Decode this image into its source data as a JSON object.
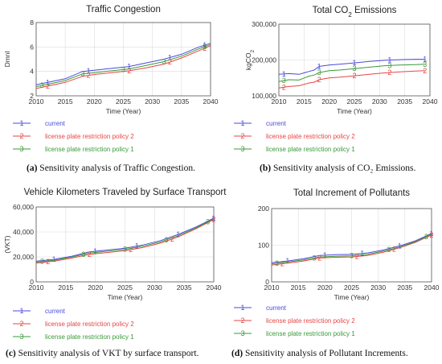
{
  "chart_data": [
    {
      "type": "line",
      "title": "Traffic Congestion",
      "xlabel": "Time (Year)",
      "ylabel": "Dmnl",
      "xlim": [
        2010,
        2040
      ],
      "ylim": [
        2,
        8
      ],
      "xticks": [
        "2010",
        "2015",
        "2020",
        "2025",
        "2030",
        "2035",
        "2040"
      ],
      "yticks": [
        "2",
        "4",
        "6",
        "8"
      ],
      "grid": true,
      "legend_position": "bottom",
      "series": [
        {
          "name": "current",
          "marker": "1",
          "color": "#4a4adc",
          "x": [
            2010,
            2012,
            2015,
            2018,
            2020,
            2023,
            2026,
            2029,
            2032,
            2035,
            2038,
            2040
          ],
          "y": [
            2.9,
            3.1,
            3.4,
            4.0,
            4.1,
            4.25,
            4.4,
            4.7,
            5.0,
            5.4,
            6.0,
            6.3
          ],
          "marker_x": [
            2012,
            2019,
            2026,
            2033,
            2039
          ]
        },
        {
          "name": "license plate restriction policy 2",
          "marker": "2",
          "color": "#e84545",
          "x": [
            2010,
            2012,
            2015,
            2018,
            2020,
            2023,
            2026,
            2029,
            2032,
            2035,
            2038,
            2040
          ],
          "y": [
            2.6,
            2.8,
            3.1,
            3.6,
            3.75,
            3.9,
            4.05,
            4.3,
            4.6,
            5.1,
            5.7,
            6.1
          ],
          "marker_x": [
            2012,
            2019,
            2026,
            2033,
            2039
          ]
        },
        {
          "name": "license plate restriction policy 1",
          "marker": "3",
          "color": "#3a9a3a",
          "x": [
            2010,
            2012,
            2015,
            2018,
            2020,
            2023,
            2026,
            2029,
            2032,
            2035,
            2038,
            2040
          ],
          "y": [
            2.75,
            2.95,
            3.25,
            3.8,
            3.9,
            4.05,
            4.2,
            4.5,
            4.8,
            5.25,
            5.85,
            6.2
          ],
          "marker_x": [
            2011,
            2018,
            2025,
            2032,
            2039
          ]
        }
      ]
    },
    {
      "type": "line",
      "title": "Total CO2 Emissions",
      "title_main": "Total CO",
      "title_sub": "2",
      "title_tail": " Emissions",
      "xlabel": "Time (Year)",
      "ylabel": "kgCO2",
      "ylabel_main": "kgCO",
      "ylabel_sub": "2",
      "xlim": [
        2010,
        2040
      ],
      "ylim": [
        100000,
        300000
      ],
      "xticks": [
        "2010",
        "2015",
        "2020",
        "2025",
        "2030",
        "2035",
        "2040"
      ],
      "yticks": [
        "100,000",
        "200,000",
        "300,000"
      ],
      "grid": true,
      "legend_position": "bottom",
      "series": [
        {
          "name": "current",
          "marker": "1",
          "color": "#4a4adc",
          "x": [
            2010,
            2012,
            2014,
            2016,
            2017,
            2018,
            2020,
            2022,
            2025,
            2028,
            2031,
            2034,
            2037,
            2039
          ],
          "y": [
            160000,
            162000,
            160000,
            168000,
            172000,
            182000,
            186000,
            188000,
            192000,
            196000,
            199000,
            201000,
            202000,
            202000
          ],
          "marker_x": [
            2011,
            2018,
            2025,
            2032,
            2039
          ]
        },
        {
          "name": "license plate restriction policy 2",
          "marker": "2",
          "color": "#e84545",
          "x": [
            2010,
            2012,
            2014,
            2016,
            2017,
            2018,
            2020,
            2022,
            2025,
            2028,
            2031,
            2034,
            2037,
            2039
          ],
          "y": [
            122000,
            126000,
            128000,
            136000,
            138000,
            145000,
            150000,
            152000,
            156000,
            160000,
            164000,
            167000,
            169000,
            170000
          ],
          "marker_x": [
            2011,
            2018,
            2025,
            2032,
            2039
          ]
        },
        {
          "name": "license plate restriction policy 1",
          "marker": "3",
          "color": "#3a9a3a",
          "x": [
            2010,
            2012,
            2014,
            2016,
            2017,
            2018,
            2020,
            2022,
            2025,
            2028,
            2031,
            2034,
            2037,
            2039
          ],
          "y": [
            140000,
            145000,
            144000,
            155000,
            158000,
            165000,
            170000,
            172000,
            176000,
            180000,
            184000,
            186000,
            187000,
            188000
          ],
          "marker_x": [
            2011,
            2018,
            2025,
            2032,
            2039
          ]
        }
      ]
    },
    {
      "type": "line",
      "title": "Vehicle Kilometers Traveled by Surface Transport",
      "xlabel": "Time (Year)",
      "ylabel": "(VKT)",
      "xlim": [
        2010,
        2040
      ],
      "ylim": [
        0,
        60000
      ],
      "xticks": [
        "2010",
        "2015",
        "2020",
        "2025",
        "2030",
        "2035",
        "2040"
      ],
      "yticks": [
        "0",
        "20,000",
        "40,000",
        "60,000"
      ],
      "grid": true,
      "legend_position": "bottom",
      "series": [
        {
          "name": "current",
          "marker": "1",
          "color": "#4a4adc",
          "x": [
            2010,
            2013,
            2016,
            2019,
            2022,
            2025,
            2028,
            2031,
            2034,
            2037,
            2040
          ],
          "y": [
            16500,
            18000,
            20500,
            24000,
            25500,
            27000,
            29500,
            33000,
            38000,
            44000,
            51000
          ],
          "marker_x": [
            2013,
            2020,
            2027,
            2034,
            2040
          ]
        },
        {
          "name": "license plate restriction policy 2",
          "marker": "2",
          "color": "#e84545",
          "x": [
            2010,
            2013,
            2016,
            2019,
            2022,
            2025,
            2028,
            2031,
            2034,
            2037,
            2040
          ],
          "y": [
            15000,
            16500,
            19000,
            22000,
            23500,
            25000,
            27500,
            31000,
            36000,
            42500,
            50000
          ],
          "marker_x": [
            2012,
            2019,
            2026,
            2033,
            2040
          ]
        },
        {
          "name": "license plate restriction policy 1",
          "marker": "3",
          "color": "#3a9a3a",
          "x": [
            2010,
            2013,
            2016,
            2019,
            2022,
            2025,
            2028,
            2031,
            2034,
            2037,
            2040
          ],
          "y": [
            15800,
            17300,
            19800,
            23000,
            24500,
            26000,
            28500,
            32000,
            37000,
            43200,
            50500
          ],
          "marker_x": [
            2011,
            2018,
            2025,
            2032,
            2039
          ]
        }
      ]
    },
    {
      "type": "line",
      "title": "Total Increment of Pollutants",
      "xlabel": "Time (Year)",
      "ylabel": "",
      "xlim": [
        2010,
        2040
      ],
      "ylim": [
        0,
        200
      ],
      "xticks": [
        "2010",
        "2015",
        "2020",
        "2025",
        "2030",
        "2035",
        "2040"
      ],
      "yticks": [
        "0",
        "100",
        "200"
      ],
      "grid": true,
      "legend_position": "bottom",
      "series": [
        {
          "name": "current",
          "marker": "1",
          "color": "#4a4adc",
          "x": [
            2010,
            2013,
            2016,
            2019,
            2022,
            2025,
            2028,
            2031,
            2034,
            2037,
            2040
          ],
          "y": [
            52,
            57,
            63,
            72,
            74,
            75,
            79,
            87,
            98,
            112,
            132
          ],
          "marker_x": [
            2013,
            2020,
            2027,
            2034,
            2040
          ]
        },
        {
          "name": "license plate restriction policy 2",
          "marker": "2",
          "color": "#e84545",
          "x": [
            2010,
            2013,
            2016,
            2019,
            2022,
            2025,
            2028,
            2031,
            2034,
            2037,
            2040
          ],
          "y": [
            46,
            51,
            57,
            65,
            67,
            68,
            72,
            81,
            93,
            108,
            128
          ],
          "marker_x": [
            2012,
            2019,
            2026,
            2033,
            2040
          ]
        },
        {
          "name": "license plate restriction policy 1",
          "marker": "3",
          "color": "#3a9a3a",
          "x": [
            2010,
            2013,
            2016,
            2019,
            2022,
            2025,
            2028,
            2031,
            2034,
            2037,
            2040
          ],
          "y": [
            49,
            54,
            60,
            68,
            70,
            71,
            75,
            84,
            95,
            110,
            130
          ],
          "marker_x": [
            2011,
            2018,
            2025,
            2032,
            2039
          ]
        }
      ]
    }
  ],
  "captions": [
    {
      "label": "(a)",
      "text": " Sensitivity analysis of Traffic Congestion."
    },
    {
      "label": "(b)",
      "text": " Sensitivity analysis of CO₂ Emissions."
    },
    {
      "label": "(c)",
      "text": " Sensitivity analysis of VKT by surface transport."
    },
    {
      "label": "(d)",
      "text": " Sensitivity analysis of Pollutant Increments."
    }
  ]
}
